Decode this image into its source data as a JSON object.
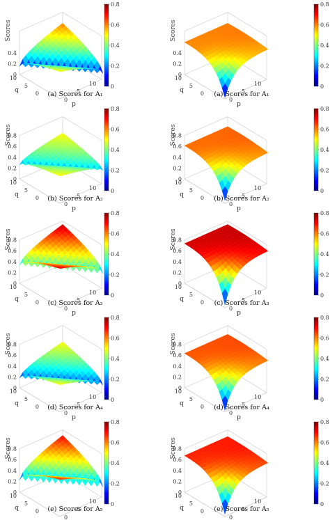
{
  "figure": {
    "background": "#ffffff"
  },
  "colormap": {
    "name": "jet",
    "stops": [
      "#00008f",
      "#0000ff",
      "#00ffff",
      "#ffff00",
      "#ff0000",
      "#800000"
    ],
    "range": [
      0,
      0.8
    ],
    "ticks_left_column": [
      "0.8",
      "0.6",
      "0.4",
      "0.2",
      "0"
    ],
    "ticks_right_column": [
      "0.8",
      "0.6",
      "0.4",
      "0.2",
      "0"
    ]
  },
  "chart_data": [
    {
      "type": "surface",
      "panel": "left-1",
      "caption": "(a) Scores for A₁",
      "zlabel": "Scores",
      "xlabel": "p",
      "ylabel": "q",
      "zticks": [
        "",
        "0.4",
        "0.2",
        "0"
      ],
      "xticks": [
        "0",
        "5",
        "10"
      ],
      "yticks": [
        "10",
        "5",
        "0"
      ],
      "shape": "v-valley",
      "corner_values": {
        "back": 0.15,
        "left": 0.6,
        "front": 0.12,
        "right": 0.5
      },
      "z_range": [
        0,
        0.8
      ]
    },
    {
      "type": "surface",
      "panel": "right-1",
      "caption": "(a) Scores for A₁",
      "zlabel": "Scores",
      "xlabel": "p",
      "ylabel": "q",
      "zticks": [
        "",
        "0.4",
        "0.2",
        "0"
      ],
      "xticks": [
        "0",
        "5",
        "10"
      ],
      "yticks": [
        "10",
        "5",
        "0"
      ],
      "shape": "funnel",
      "corner_values": {
        "back": 0.6,
        "left": 0.62,
        "front": 0.02,
        "right": 0.6
      },
      "z_range": [
        0,
        0.8
      ]
    },
    {
      "type": "surface",
      "panel": "left-2",
      "caption": "(b) Scores for A₂",
      "zlabel": "Scores",
      "xlabel": "p",
      "ylabel": "q",
      "zticks": [
        "0.8",
        "0.6",
        "0.4",
        "0.2",
        "0"
      ],
      "xticks": [
        "0",
        "5",
        "10"
      ],
      "yticks": [
        "10",
        "5",
        "0"
      ],
      "shape": "v-valley",
      "corner_values": {
        "back": 0.26,
        "left": 0.5,
        "front": 0.26,
        "right": 0.5
      },
      "z_range": [
        0,
        0.8
      ]
    },
    {
      "type": "surface",
      "panel": "right-2",
      "caption": "(b) Scores for A₂",
      "zlabel": "Scores",
      "xlabel": "p",
      "ylabel": "q",
      "zticks": [
        "0.8",
        "0.6",
        "0.4",
        "0.2",
        "0"
      ],
      "xticks": [
        "0",
        "5",
        "10"
      ],
      "yticks": [
        "10",
        "5",
        "0"
      ],
      "shape": "funnel",
      "corner_values": {
        "back": 0.62,
        "left": 0.6,
        "front": 0.05,
        "right": 0.6
      },
      "z_range": [
        0,
        0.8
      ]
    },
    {
      "type": "surface",
      "panel": "left-3",
      "caption": "(c) Scores for A₃",
      "zlabel": "Scores",
      "xlabel": "p",
      "ylabel": "q",
      "zticks": [
        "0.8",
        "0.6",
        "0.4",
        "0.2",
        "0"
      ],
      "xticks": [
        "0",
        "5",
        "10"
      ],
      "yticks": [
        "10",
        "5",
        "0"
      ],
      "shape": "v-valley",
      "corner_values": {
        "back": 0.33,
        "left": 0.74,
        "front": 0.28,
        "right": 0.72
      },
      "z_range": [
        0,
        0.8
      ]
    },
    {
      "type": "surface",
      "panel": "right-3",
      "caption": "(c) Scores for A₃",
      "zlabel": "Scores",
      "xlabel": "p",
      "ylabel": "q",
      "zticks": [
        "0.8",
        "0.6",
        "0.4",
        "0.2",
        "0"
      ],
      "xticks": [
        "0",
        "5",
        "10"
      ],
      "yticks": [
        "10",
        "5",
        "0"
      ],
      "shape": "funnel",
      "corner_values": {
        "back": 0.74,
        "left": 0.73,
        "front": 0.05,
        "right": 0.73
      },
      "z_range": [
        0,
        0.8
      ]
    },
    {
      "type": "surface",
      "panel": "left-4",
      "caption": "(d) Scores for A₄",
      "zlabel": "Scores",
      "xlabel": "p",
      "ylabel": "q",
      "zticks": [
        "0.8",
        "0.6",
        "0.4",
        "0.2",
        "0"
      ],
      "xticks": [
        "0",
        "5",
        "10"
      ],
      "yticks": [
        "10",
        "5",
        "0"
      ],
      "shape": "v-valley",
      "corner_values": {
        "back": 0.18,
        "left": 0.5,
        "front": 0.15,
        "right": 0.5
      },
      "z_range": [
        0,
        0.8
      ]
    },
    {
      "type": "surface",
      "panel": "right-4",
      "caption": "(d) Scores for A₄",
      "zlabel": "Scores",
      "xlabel": "p",
      "ylabel": "q",
      "zticks": [
        "0.8",
        "0.6",
        "0.4",
        "0.2",
        "0"
      ],
      "xticks": [
        "0",
        "5",
        "10"
      ],
      "yticks": [
        "10",
        "5",
        "0"
      ],
      "shape": "funnel",
      "corner_values": {
        "back": 0.64,
        "left": 0.67,
        "front": 0.03,
        "right": 0.67
      },
      "z_range": [
        0,
        0.8
      ]
    },
    {
      "type": "surface",
      "panel": "left-5",
      "caption": "(e) Scores for A₅",
      "zlabel": "Scores",
      "xlabel": "p",
      "ylabel": "q",
      "zticks": [
        "0.8",
        "0.6",
        "0.4",
        "0.2",
        "0"
      ],
      "xticks": [
        "0",
        "5",
        "10"
      ],
      "yticks": [
        "10",
        "5",
        "0"
      ],
      "shape": "v-valley",
      "corner_values": {
        "back": 0.22,
        "left": 0.7,
        "front": 0.2,
        "right": 0.68
      },
      "z_range": [
        0,
        0.8
      ]
    },
    {
      "type": "surface",
      "panel": "right-5",
      "caption": "(e) Scores for A₅",
      "zlabel": "Scores",
      "xlabel": "p",
      "ylabel": "q",
      "zticks": [
        "0.8",
        "0.6",
        "0.4",
        "0.2",
        "0"
      ],
      "xticks": [
        "0",
        "5",
        "10"
      ],
      "yticks": [
        "10",
        "5",
        "0"
      ],
      "shape": "funnel",
      "corner_values": {
        "back": 0.68,
        "left": 0.72,
        "front": 0.04,
        "right": 0.72
      },
      "z_range": [
        0,
        0.8
      ]
    }
  ]
}
